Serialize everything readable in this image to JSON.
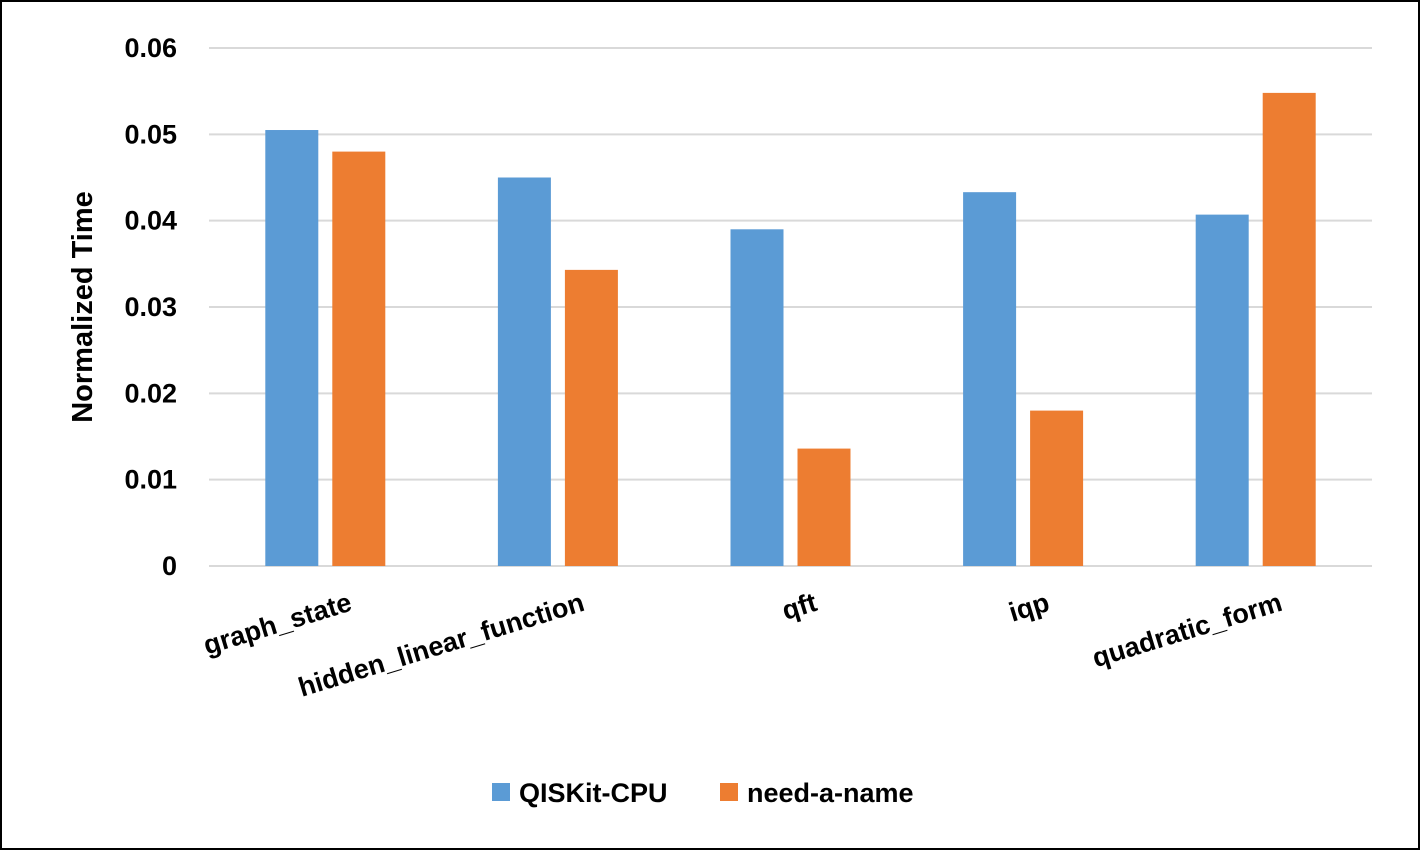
{
  "chart_data": {
    "type": "bar",
    "title": "",
    "xlabel": "",
    "ylabel": "Normalized Time",
    "ylim": [
      0,
      0.06
    ],
    "yticks": [
      0,
      0.01,
      0.02,
      0.03,
      0.04,
      0.05,
      0.06
    ],
    "ytick_labels": [
      "0",
      "0.01",
      "0.02",
      "0.03",
      "0.04",
      "0.05",
      "0.06"
    ],
    "categories": [
      "graph_state",
      "hidden_linear_function",
      "qft",
      "iqp",
      "quadratic_form"
    ],
    "series": [
      {
        "name": "QISKit-CPU",
        "color": "#5b9bd5",
        "values": [
          0.0505,
          0.045,
          0.039,
          0.0433,
          0.0407
        ]
      },
      {
        "name": "need-a-name",
        "color": "#ed7d31",
        "values": [
          0.048,
          0.0343,
          0.0136,
          0.018,
          0.0548
        ]
      }
    ],
    "grid": true,
    "legend_position": "bottom"
  }
}
